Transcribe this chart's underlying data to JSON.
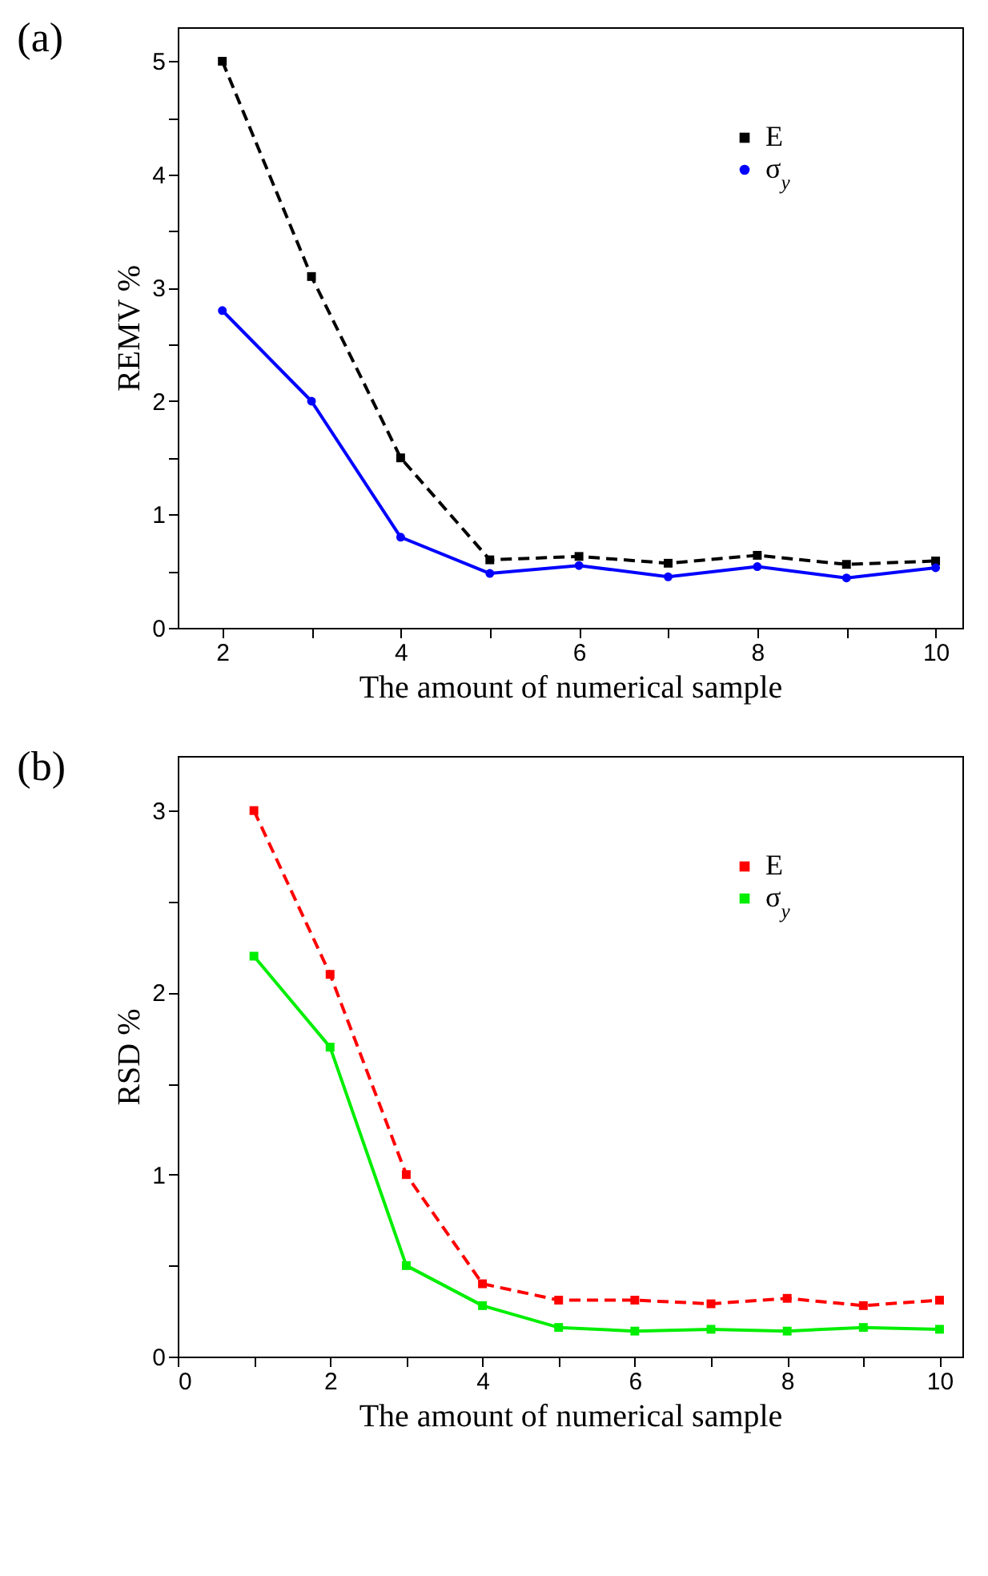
{
  "chart_data": [
    {
      "type": "line",
      "annotations": [
        "(a)"
      ],
      "xlabel": "The amount of numerical sample",
      "ylabel": "REMV %",
      "x": [
        2,
        3,
        4,
        5,
        6,
        7,
        8,
        9,
        10
      ],
      "xlim": [
        1.5,
        10.3
      ],
      "xticks": [
        2,
        {
          "value": 3,
          "label": null
        },
        4,
        {
          "value": 5,
          "label": null
        },
        6,
        {
          "value": 7,
          "label": null
        },
        8,
        {
          "value": 9,
          "label": null
        },
        10
      ],
      "ylim": [
        0,
        5.3
      ],
      "yticks": [
        0,
        {
          "value": 0.5,
          "label": null
        },
        1,
        {
          "value": 1.5,
          "label": null
        },
        2,
        {
          "value": 2.5,
          "label": null
        },
        3,
        {
          "value": 3.5,
          "label": null
        },
        4,
        {
          "value": 4.5,
          "label": null
        },
        5
      ],
      "grid": false,
      "legend": "top right",
      "series": [
        {
          "name": "E",
          "color": "#000000",
          "marker": "square",
          "line_style": "dashed",
          "values": [
            5.0,
            3.1,
            1.5,
            0.6,
            0.63,
            0.57,
            0.64,
            0.56,
            0.59
          ]
        },
        {
          "name": "σ$_{y}$",
          "color": "#0000ff",
          "marker": "circle",
          "line_style": "solid",
          "values": [
            2.8,
            2.0,
            0.8,
            0.48,
            0.55,
            0.45,
            0.54,
            0.44,
            0.53
          ]
        }
      ]
    },
    {
      "type": "line",
      "annotations": [
        "(b)"
      ],
      "xlabel": "The amount of numerical sample",
      "ylabel": "RSD %",
      "x": [
        1,
        2,
        3,
        4,
        5,
        6,
        7,
        8,
        9,
        10
      ],
      "xlim": [
        0,
        10.3
      ],
      "xticks": [
        0,
        {
          "value": 1,
          "label": null
        },
        2,
        {
          "value": 3,
          "label": null
        },
        4,
        {
          "value": 5,
          "label": null
        },
        6,
        {
          "value": 7,
          "label": null
        },
        8,
        {
          "value": 9,
          "label": null
        },
        10
      ],
      "ylim": [
        0,
        3.3
      ],
      "yticks": [
        0,
        {
          "value": 0.5,
          "label": null
        },
        1,
        {
          "value": 1.5,
          "label": null
        },
        2,
        {
          "value": 2.5,
          "label": null
        },
        3
      ],
      "grid": false,
      "legend": "top right",
      "series": [
        {
          "name": "E",
          "color": "#ff0000",
          "marker": "square",
          "line_style": "dashed",
          "values": [
            3.0,
            2.1,
            1.0,
            0.4,
            0.31,
            0.31,
            0.29,
            0.32,
            0.28,
            0.31
          ]
        },
        {
          "name": "σ$_{y}$",
          "color": "#00ee00",
          "marker": "square",
          "line_style": "solid",
          "values": [
            2.2,
            1.7,
            0.5,
            0.28,
            0.16,
            0.14,
            0.15,
            0.14,
            0.16,
            0.15
          ]
        }
      ]
    }
  ]
}
